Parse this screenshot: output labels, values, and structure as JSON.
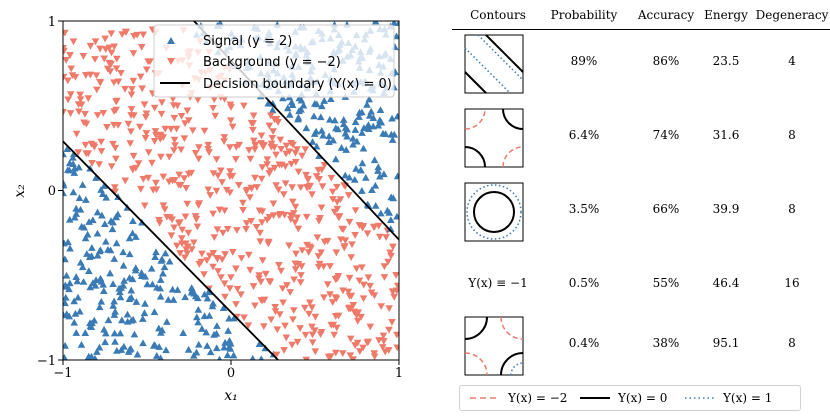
{
  "chart_data": {
    "type": "scatter",
    "xlabel": "x₁",
    "ylabel": "x₂",
    "xlim": [
      -1,
      1
    ],
    "ylim": [
      -1,
      1
    ],
    "x_ticks": [
      "−1",
      "0",
      "1"
    ],
    "y_ticks": [
      "−1",
      "0",
      "1"
    ],
    "grid": false,
    "legend_placement": "top-right",
    "legend": [
      {
        "label": "Signal (y = 2)",
        "marker": "triangle-up",
        "color": "#3a7ab5"
      },
      {
        "label": "Background (y = −2)",
        "marker": "triangle-down",
        "color": "#f07a6a"
      },
      {
        "label": "Decision boundary (Y(x) = 0)",
        "marker": "line",
        "color": "#000000"
      }
    ],
    "boundaries": [
      {
        "x": [
          -1,
          0.28
        ],
        "y": [
          0.29,
          -1
        ]
      },
      {
        "x": [
          -0.22,
          1
        ],
        "y": [
          1,
          -0.29
        ]
      }
    ],
    "series": [
      {
        "name": "Signal (y = 2)",
        "rule": "|x1 + x2| > 0.71",
        "approx_points": 420
      },
      {
        "name": "Background (y = −2)",
        "rule": "|x1 + x2| < 0.71",
        "approx_points": 560
      }
    ]
  },
  "table": {
    "headers": [
      "Contours",
      "Probability",
      "Accuracy",
      "Energy",
      "Degeneracy"
    ],
    "rows": [
      {
        "contour": "diagonal",
        "contour_text": "",
        "probability": "89%",
        "accuracy": "86%",
        "energy": "23.5",
        "degeneracy": "4"
      },
      {
        "contour": "corners-dashed",
        "contour_text": "",
        "probability": "6.4%",
        "accuracy": "74%",
        "energy": "31.6",
        "degeneracy": "8"
      },
      {
        "contour": "circle",
        "contour_text": "",
        "probability": "3.5%",
        "accuracy": "66%",
        "energy": "39.9",
        "degeneracy": "8"
      },
      {
        "contour": "none",
        "contour_text": "Y(x) ≡ −1",
        "probability": "0.5%",
        "accuracy": "55%",
        "energy": "46.4",
        "degeneracy": "16"
      },
      {
        "contour": "corners-solid",
        "contour_text": "",
        "probability": "0.4%",
        "accuracy": "38%",
        "energy": "95.1",
        "degeneracy": "8"
      }
    ],
    "legend": [
      {
        "label": "Y(x) = −2",
        "style": "dashed",
        "color": "#f07a6a"
      },
      {
        "label": "Y(x) = 0",
        "style": "solid",
        "color": "#000000"
      },
      {
        "label": "Y(x) = 1",
        "style": "dotted",
        "color": "#3a7ab5"
      }
    ]
  }
}
